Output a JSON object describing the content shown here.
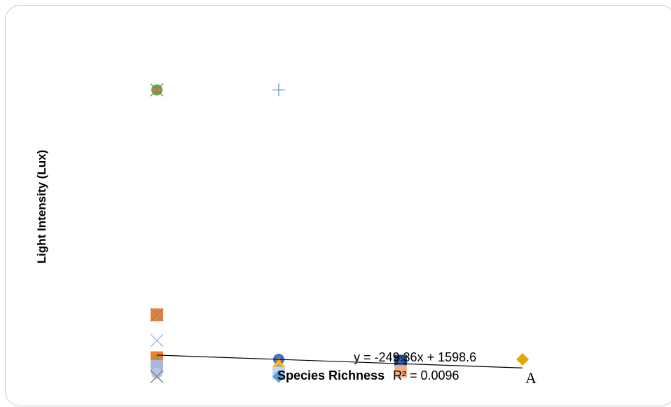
{
  "chart_data": {
    "type": "scatter",
    "title": "",
    "xlabel": "Species Richness",
    "ylabel": "Light Intensity (Lux)",
    "xlim": [
      0,
      5
    ],
    "ylim": [
      0,
      20000
    ],
    "grid": false,
    "legend": "none",
    "series": [
      {
        "marker": "circle",
        "color": "#6ba33c",
        "points": [
          [
            1,
            16800
          ]
        ]
      },
      {
        "marker": "dash",
        "color": "#ed7d31",
        "points": [
          [
            1,
            16800
          ]
        ]
      },
      {
        "marker": "x",
        "color": "#7f7f7f",
        "points": [
          [
            1,
            16800
          ]
        ]
      },
      {
        "marker": "plus",
        "color": "#5b8ed6",
        "points": [
          [
            2,
            16800
          ]
        ]
      },
      {
        "marker": "square",
        "color": "#ed7d31",
        "points": [
          [
            1,
            3700
          ]
        ]
      },
      {
        "marker": "x",
        "color": "#8a8a8a",
        "points": [
          [
            1,
            3700
          ]
        ]
      },
      {
        "marker": "x",
        "color": "#9fb8e6",
        "points": [
          [
            1,
            2200
          ]
        ]
      },
      {
        "marker": "square",
        "color": "#ed7d31",
        "points": [
          [
            1,
            1200
          ]
        ]
      },
      {
        "marker": "triangle",
        "color": "#70ad47",
        "points": [
          [
            1,
            1000
          ]
        ]
      },
      {
        "marker": "square",
        "color": "#a9b7de",
        "points": [
          [
            1,
            700
          ]
        ]
      },
      {
        "marker": "circle",
        "color": "#b4c6e7",
        "points": [
          [
            1,
            300
          ]
        ]
      },
      {
        "marker": "x",
        "color": "#7f7f7f",
        "points": [
          [
            1,
            100
          ]
        ]
      },
      {
        "marker": "circle",
        "color": "#4472c4",
        "points": [
          [
            2,
            1100
          ]
        ]
      },
      {
        "marker": "triangle",
        "color": "#ed7d31",
        "points": [
          [
            2,
            900
          ]
        ]
      },
      {
        "marker": "diamond",
        "color": "#ffc000",
        "points": [
          [
            2,
            700
          ]
        ]
      },
      {
        "marker": "diamond",
        "color": "#a5a5a5",
        "points": [
          [
            2,
            500
          ]
        ]
      },
      {
        "marker": "square",
        "color": "#c5d3ec",
        "points": [
          [
            2,
            300
          ]
        ]
      },
      {
        "marker": "diamond",
        "color": "#5b9bd5",
        "points": [
          [
            2,
            100
          ]
        ]
      },
      {
        "marker": "square",
        "color": "#264478",
        "points": [
          [
            3,
            1000
          ]
        ]
      },
      {
        "marker": "triangle",
        "color": "#4472c4",
        "points": [
          [
            3,
            800
          ]
        ]
      },
      {
        "marker": "square",
        "color": "#f4b183",
        "points": [
          [
            3,
            400
          ]
        ]
      },
      {
        "marker": "diamond",
        "color": "#e4a900",
        "points": [
          [
            4,
            1100
          ]
        ]
      }
    ],
    "trendline": {
      "type": "linear",
      "x_range": [
        1,
        4
      ],
      "equation": "y = -249.36x + 1598.6",
      "r2": "R² = 0.0096"
    },
    "annotation": "A"
  }
}
